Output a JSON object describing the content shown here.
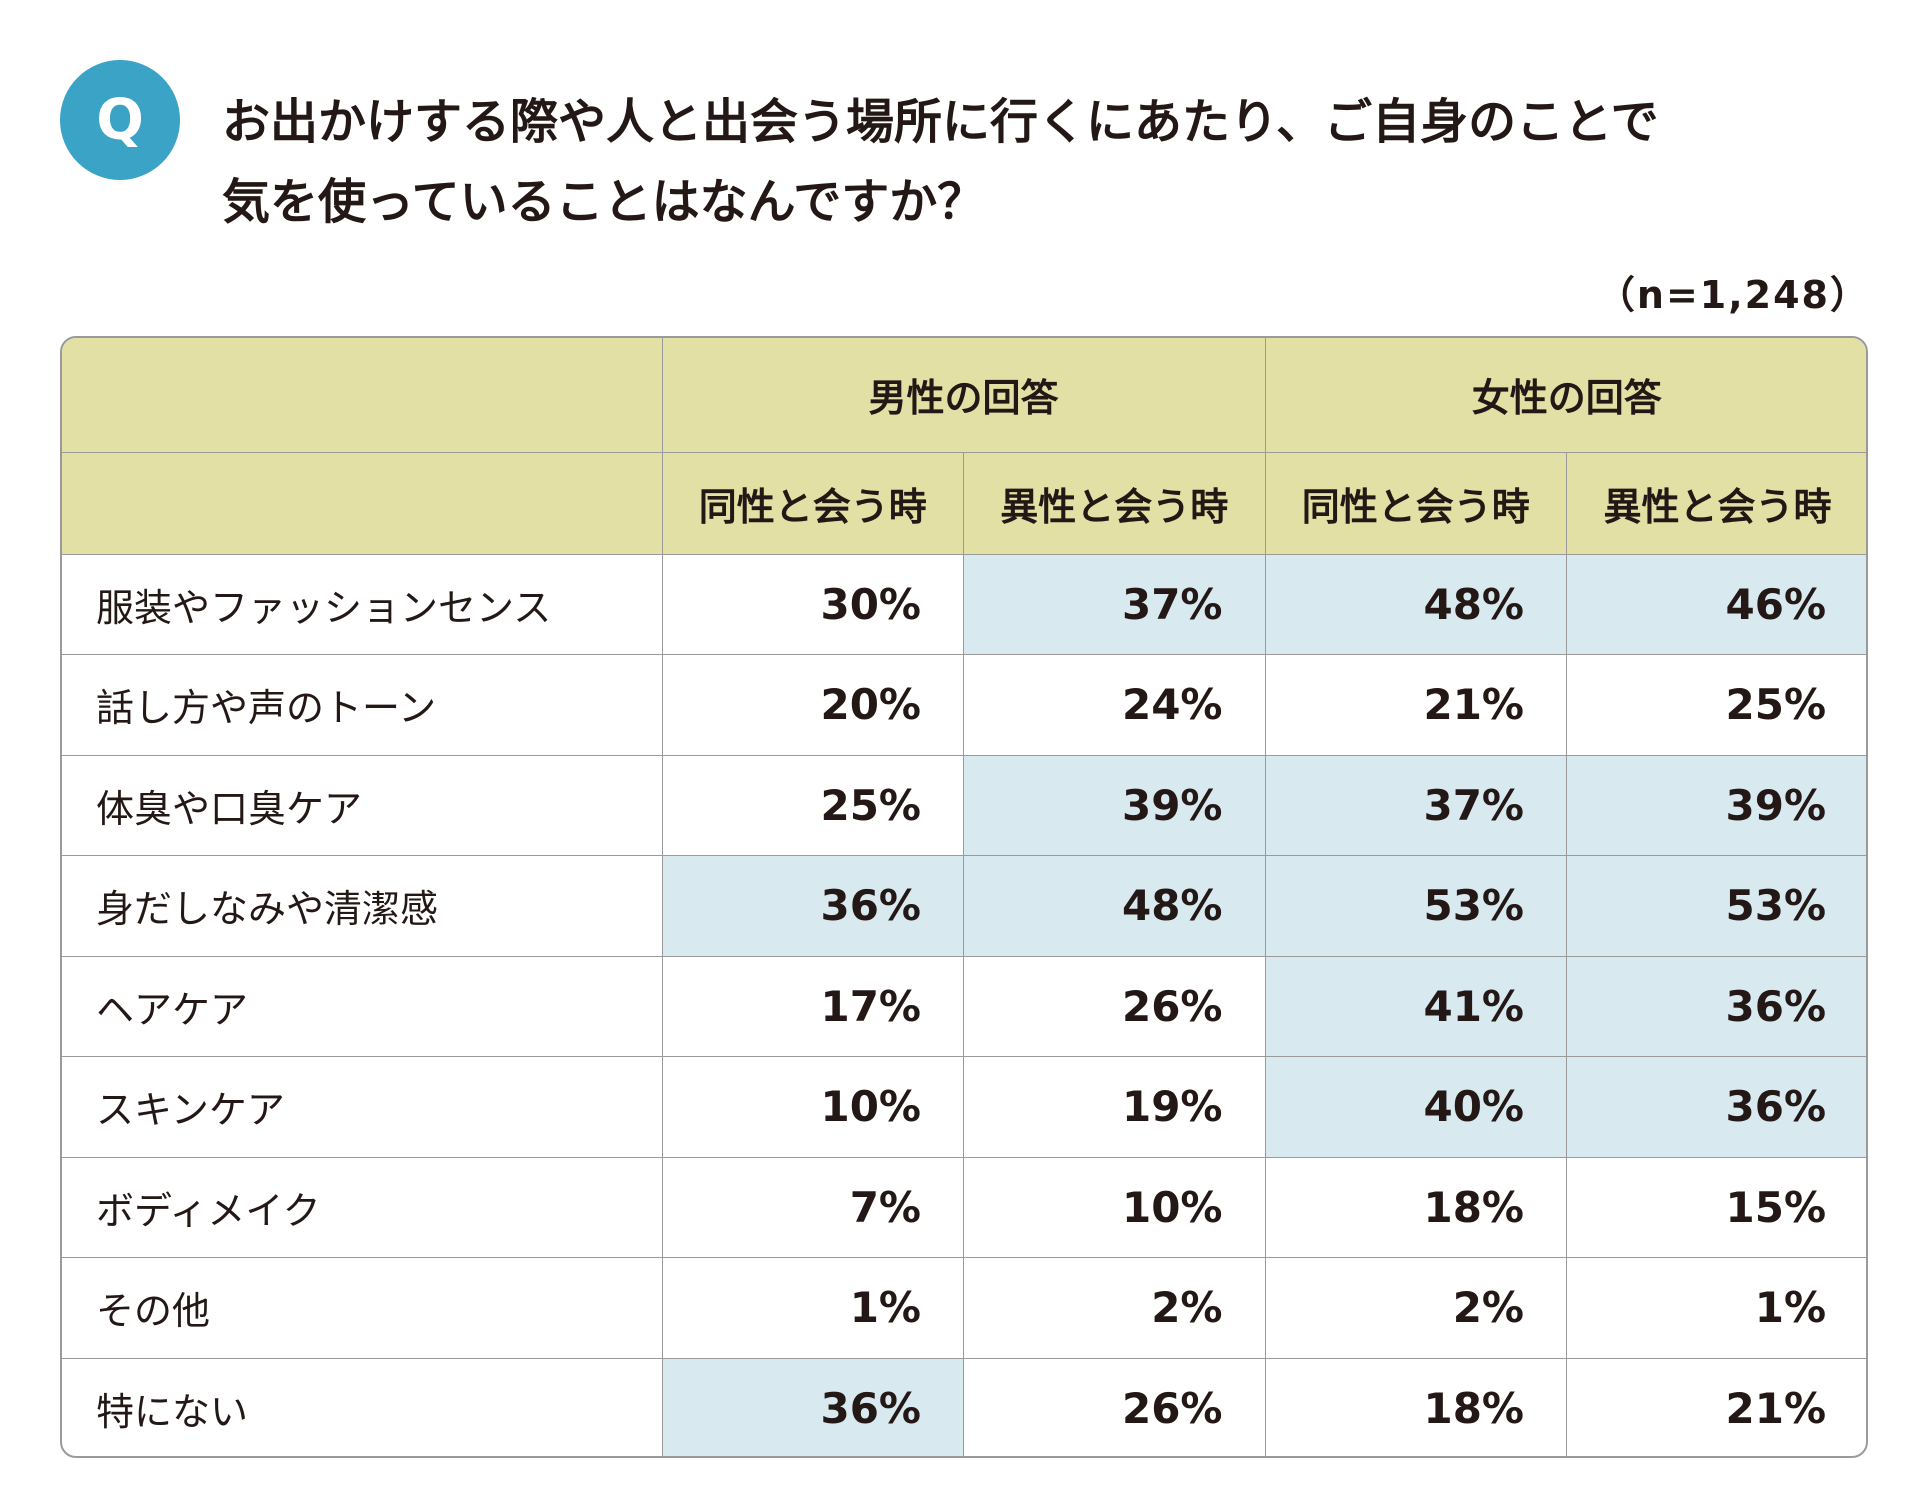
{
  "badge": "Q",
  "question": {
    "line1": "お出かけする際や人と出会う場所に行くにあたり、ご自身のことで",
    "line2": "気を使っていることはなんですか？"
  },
  "sample_size": "（n=1,248）",
  "colors": {
    "badge": "#3aa3c6",
    "header_bg": "#e2e0a4",
    "highlight_bg": "#d8eaf0",
    "border": "#9a9a9a"
  },
  "chart_data": {
    "type": "table",
    "title": "お出かけする際や人と出会う場所に行くにあたり、ご自身のことで気を使っていることはなんですか？",
    "note": "（n=1,248）",
    "group_headers": [
      "男性の回答",
      "女性の回答"
    ],
    "columns": [
      "同性と会う時",
      "異性と会う時",
      "同性と会う時",
      "異性と会う時"
    ],
    "rows": [
      {
        "label": "服装やファッションセンス",
        "values": [
          "30%",
          "37%",
          "48%",
          "46%"
        ],
        "highlight": [
          false,
          true,
          true,
          true
        ]
      },
      {
        "label": "話し方や声のトーン",
        "values": [
          "20%",
          "24%",
          "21%",
          "25%"
        ],
        "highlight": [
          false,
          false,
          false,
          false
        ]
      },
      {
        "label": "体臭や口臭ケア",
        "values": [
          "25%",
          "39%",
          "37%",
          "39%"
        ],
        "highlight": [
          false,
          true,
          true,
          true
        ]
      },
      {
        "label": "身だしなみや清潔感",
        "values": [
          "36%",
          "48%",
          "53%",
          "53%"
        ],
        "highlight": [
          true,
          true,
          true,
          true
        ]
      },
      {
        "label": "ヘアケア",
        "values": [
          "17%",
          "26%",
          "41%",
          "36%"
        ],
        "highlight": [
          false,
          false,
          true,
          true
        ]
      },
      {
        "label": "スキンケア",
        "values": [
          "10%",
          "19%",
          "40%",
          "36%"
        ],
        "highlight": [
          false,
          false,
          true,
          true
        ]
      },
      {
        "label": "ボディメイク",
        "values": [
          "7%",
          "10%",
          "18%",
          "15%"
        ],
        "highlight": [
          false,
          false,
          false,
          false
        ]
      },
      {
        "label": "その他",
        "values": [
          "1%",
          "2%",
          "2%",
          "1%"
        ],
        "highlight": [
          false,
          false,
          false,
          false
        ]
      },
      {
        "label": "特にない",
        "values": [
          "36%",
          "26%",
          "18%",
          "21%"
        ],
        "highlight": [
          true,
          false,
          false,
          false
        ]
      }
    ]
  }
}
